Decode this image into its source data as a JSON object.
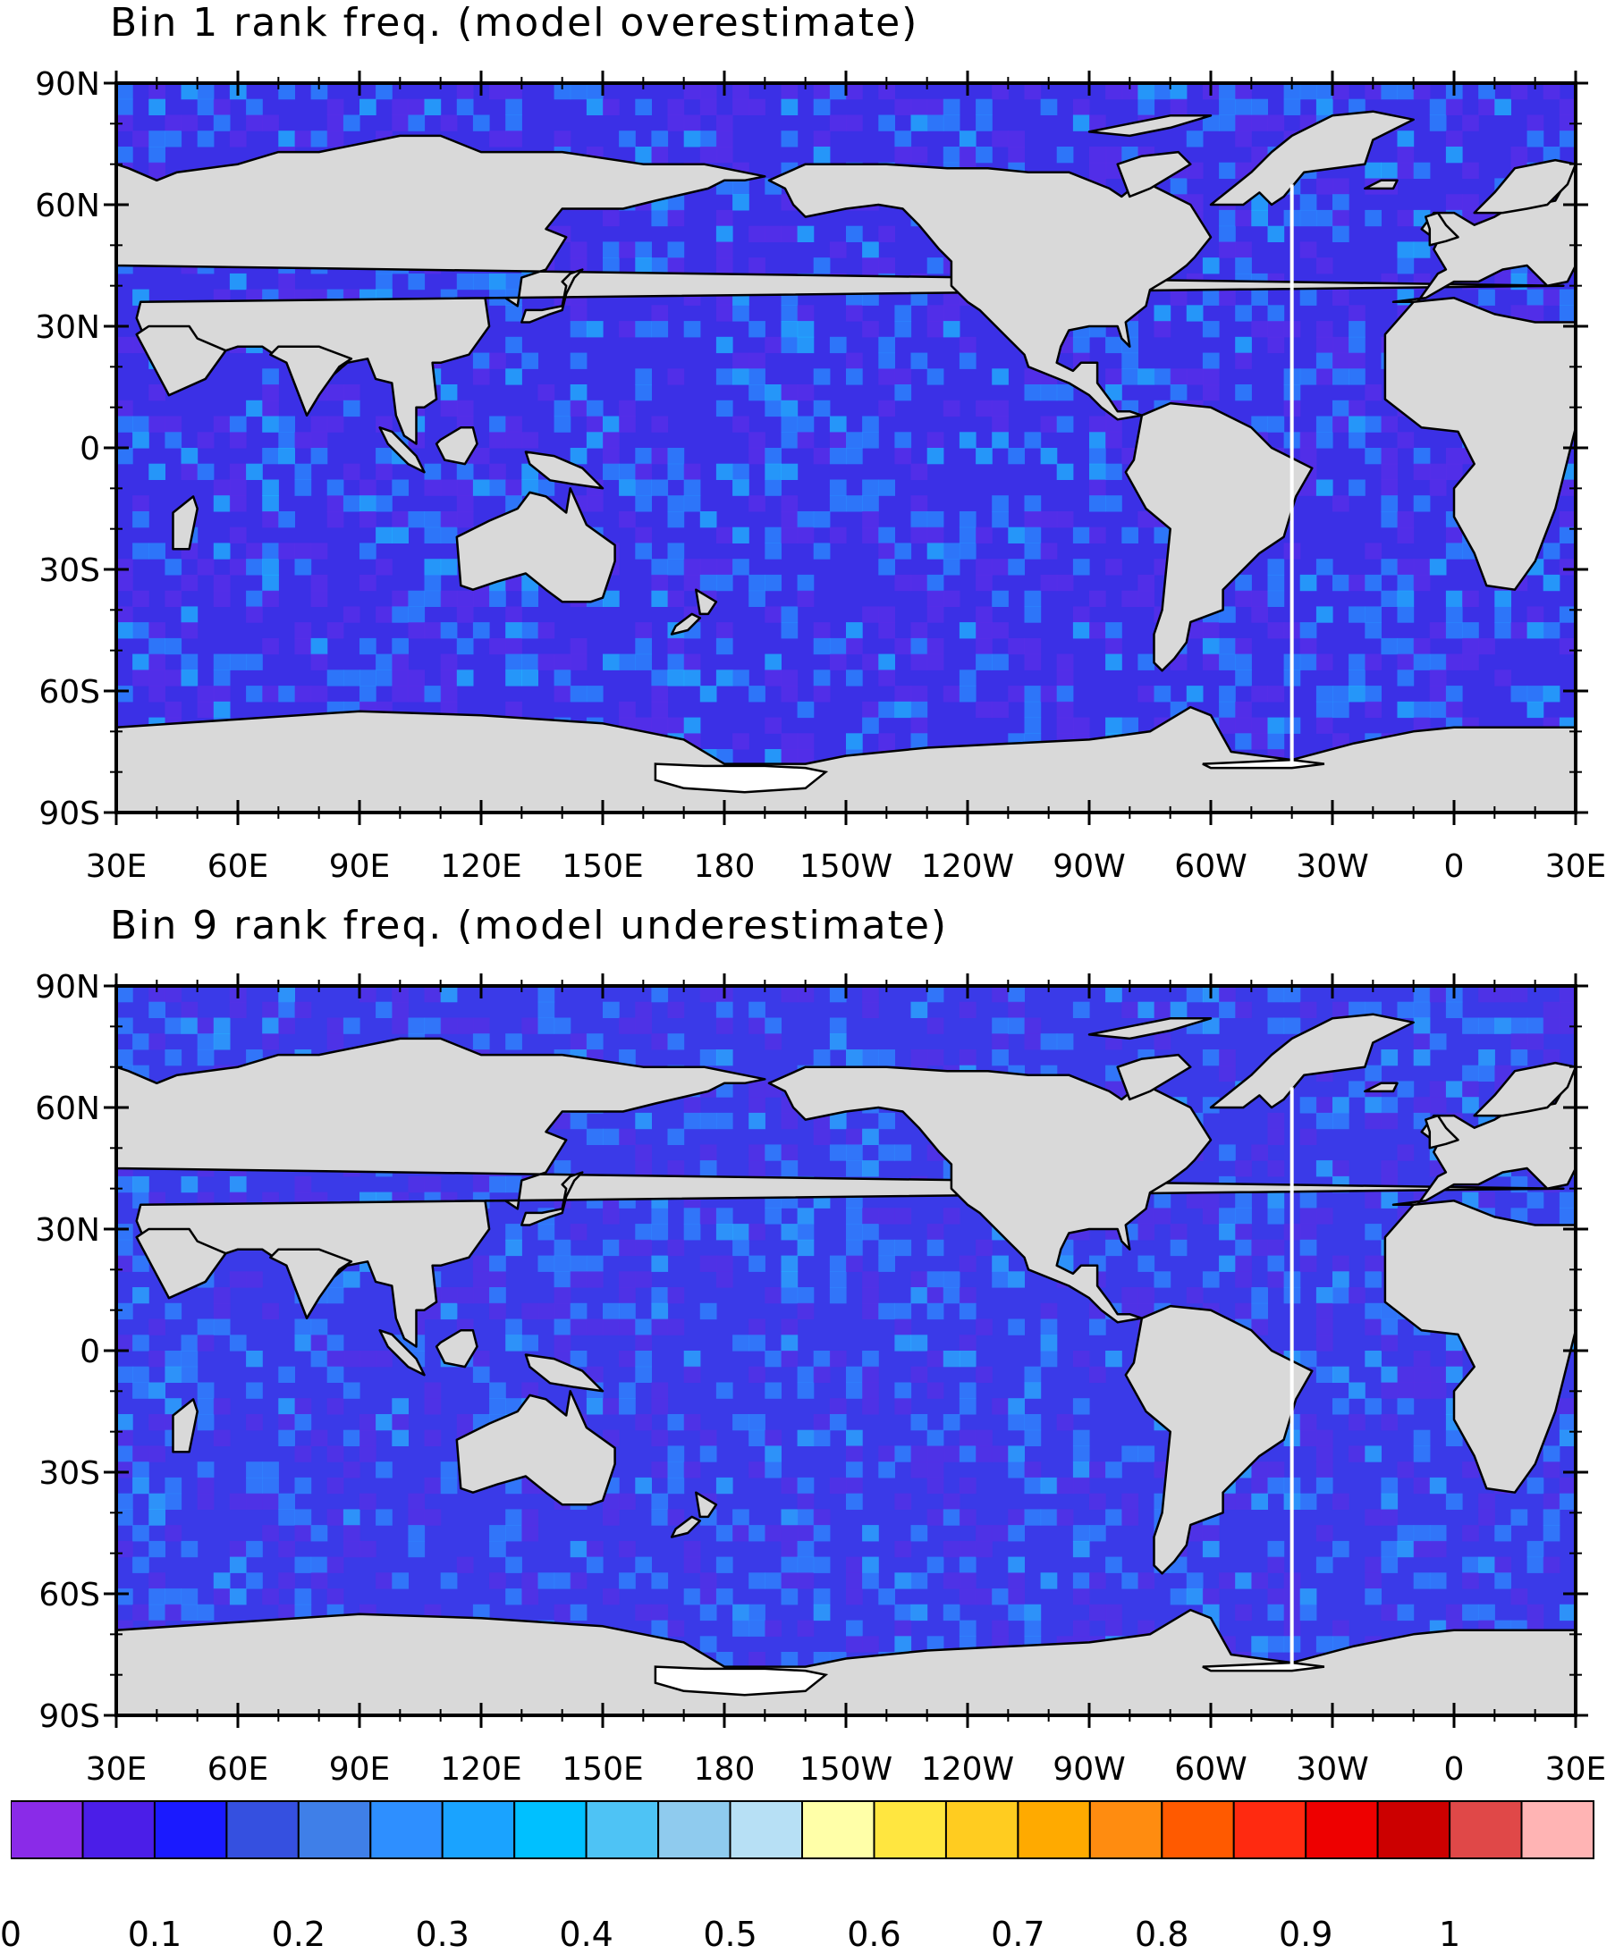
{
  "panels": [
    {
      "title": "Bin 1 rank freq. (model overestimate)",
      "ocean_color": "#3b30e6",
      "patch_color": "#2a8cff",
      "bright_color": "#1fb8ff",
      "dark_color": "#5a2ee8"
    },
    {
      "title": "Bin 9 rank freq. (model underestimate)",
      "ocean_color": "#3a3ae8",
      "patch_color": "#2f8aff",
      "bright_color": "#2ab0ff",
      "dark_color": "#5530e6"
    }
  ],
  "lat_labels": [
    "90N",
    "60N",
    "30N",
    "0",
    "30S",
    "60S",
    "90S"
  ],
  "lon_labels": [
    "30E",
    "60E",
    "90E",
    "120E",
    "150E",
    "180",
    "150W",
    "120W",
    "90W",
    "60W",
    "30W",
    "0",
    "30E"
  ],
  "land_color": "#d9d9d9",
  "colorbar": {
    "colors": [
      "#8a2be8",
      "#4b1ee8",
      "#1a1aff",
      "#3550e0",
      "#3f7fe8",
      "#2e8fff",
      "#1aa3ff",
      "#00c0ff",
      "#4ec3f5",
      "#8fcbee",
      "#b7e0f5",
      "#ffffa8",
      "#ffe640",
      "#ffcc20",
      "#ffaa00",
      "#ff8c10",
      "#ff5a00",
      "#ff2a10",
      "#ee0000",
      "#cc0000",
      "#e04848",
      "#ffb4b4"
    ],
    "labels": [
      "0",
      "0.1",
      "0.2",
      "0.3",
      "0.4",
      "0.5",
      "0.6",
      "0.7",
      "0.8",
      "0.9",
      "1"
    ]
  }
}
